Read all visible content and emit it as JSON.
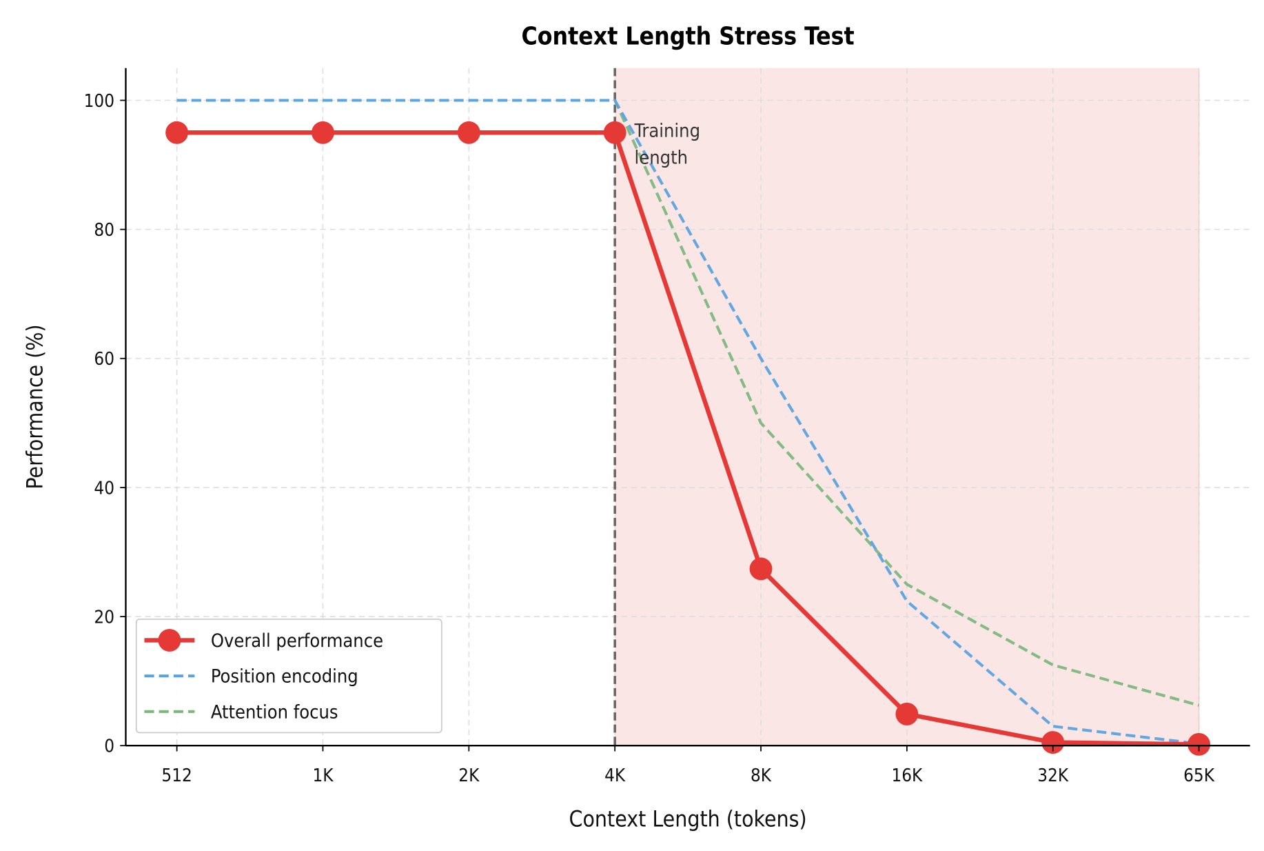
{
  "chart_data": {
    "type": "line",
    "title": "Context Length Stress Test",
    "xlabel": "Context Length (tokens)",
    "ylabel": "Performance (%)",
    "categories": [
      "512",
      "1K",
      "2K",
      "4K",
      "8K",
      "16K",
      "32K",
      "65K"
    ],
    "ylim": [
      0,
      105
    ],
    "yticks": [
      0,
      20,
      40,
      60,
      80,
      100
    ],
    "grid": true,
    "legend_position": "lower-left",
    "series": [
      {
        "name": "Overall performance",
        "values": [
          95,
          95,
          95,
          95,
          27.4,
          4.9,
          0.5,
          0.2
        ],
        "color": "#e53935",
        "style": "solid-markers"
      },
      {
        "name": "Position encoding",
        "values": [
          100,
          100,
          100,
          100,
          60,
          22.4,
          3.0,
          0.3
        ],
        "color": "#5ba3e0",
        "style": "dashed"
      },
      {
        "name": "Attention focus",
        "values": [
          100,
          100,
          100,
          100,
          50,
          25,
          12.5,
          6.25
        ],
        "color": "#7cb87c",
        "style": "dashed"
      }
    ],
    "shaded_region": {
      "from": "4K",
      "to": "65K",
      "color": "#fbe6e6"
    },
    "vertical_line": {
      "at": "4K",
      "color": "#666666",
      "style": "dashed"
    },
    "annotation": {
      "text_lines": [
        "Training",
        "length"
      ],
      "at": "4K"
    }
  }
}
